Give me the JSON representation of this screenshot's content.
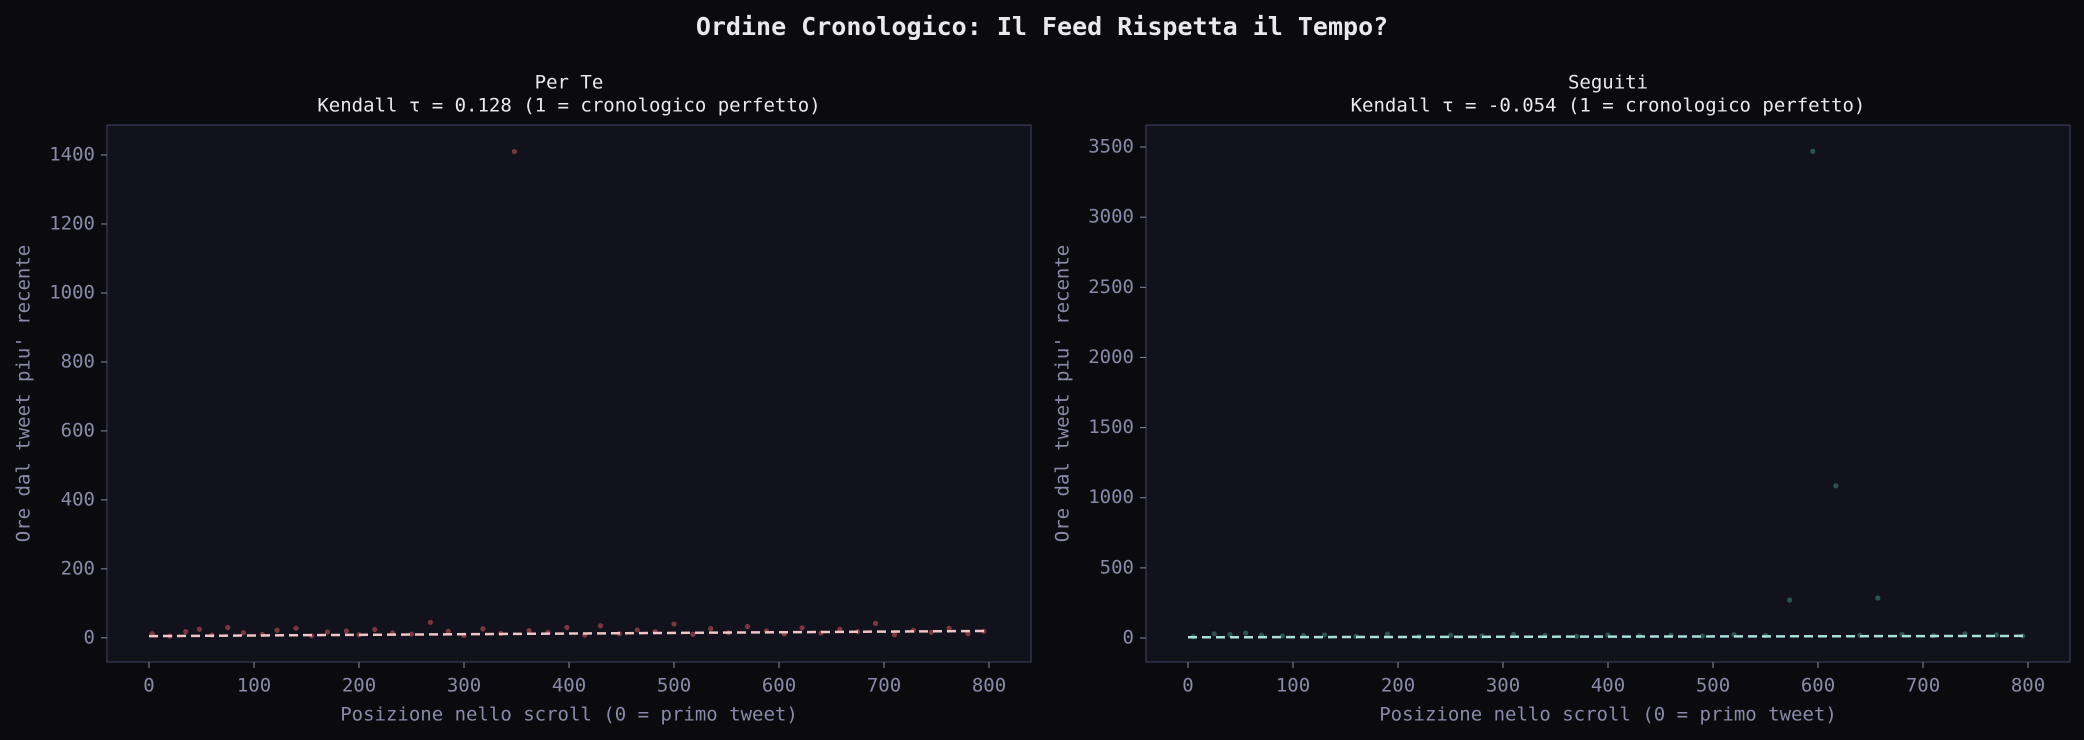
{
  "title": "Ordine Cronologico: Il Feed Rispetta il Tempo?",
  "chart_data": [
    {
      "type": "scatter",
      "title": "Per Te",
      "subtitle": "Kendall τ = 0.128 (1 = cronologico perfetto)",
      "x_label": "Posizione nello scroll (0 = primo tweet)",
      "y_label": "Ore dal tweet piu' recente",
      "xlim": [
        -40,
        840
      ],
      "ylim": [
        -70,
        1487
      ],
      "xticks": [
        0,
        100,
        200,
        300,
        400,
        500,
        600,
        700,
        800
      ],
      "yticks": [
        0,
        200,
        400,
        600,
        800,
        1000,
        1200,
        1400
      ],
      "series": [
        {
          "color": "#c0505a",
          "marker": "o",
          "x": [
            3,
            20,
            35,
            48,
            60,
            75,
            90,
            108,
            122,
            140,
            155,
            170,
            188,
            200,
            215,
            232,
            250,
            268,
            285,
            300,
            318,
            335,
            348,
            362,
            380,
            398,
            415,
            430,
            448,
            465,
            482,
            500,
            518,
            535,
            552,
            570,
            588,
            605,
            622,
            640,
            658,
            675,
            692,
            710,
            728,
            745,
            762,
            780,
            795
          ],
          "values": [
            12,
            5,
            18,
            25,
            8,
            30,
            15,
            10,
            22,
            28,
            6,
            17,
            20,
            9,
            24,
            14,
            11,
            45,
            19,
            7,
            26,
            13,
            1410,
            21,
            16,
            30,
            8,
            35,
            12,
            23,
            18,
            40,
            10,
            27,
            15,
            33,
            20,
            11,
            29,
            14,
            25,
            18,
            42,
            9,
            22,
            16,
            28,
            12,
            19
          ]
        },
        {
          "color": "#f0c4c8",
          "linestyle": "dashed",
          "x": [
            0,
            800
          ],
          "values": [
            5,
            20
          ]
        }
      ]
    },
    {
      "type": "scatter",
      "title": "Seguiti",
      "subtitle": "Kendall τ = -0.054 (1 = cronologico perfetto)",
      "x_label": "Posizione nello scroll (0 = primo tweet)",
      "y_label": "Ore dal tweet piu' recente",
      "xlim": [
        -40,
        840
      ],
      "ylim": [
        -171,
        3657
      ],
      "xticks": [
        0,
        100,
        200,
        300,
        400,
        500,
        600,
        700,
        800
      ],
      "yticks": [
        0,
        500,
        1000,
        1500,
        2000,
        2500,
        3000,
        3500
      ],
      "series": [
        {
          "color": "#3f7f6e",
          "marker": "o",
          "x": [
            5,
            25,
            40,
            55,
            70,
            90,
            110,
            130,
            160,
            190,
            220,
            250,
            280,
            310,
            340,
            370,
            400,
            430,
            460,
            490,
            520,
            550,
            573,
            595,
            617,
            640,
            657,
            680,
            710,
            740,
            770,
            795
          ],
          "values": [
            10,
            30,
            25,
            35,
            20,
            15,
            18,
            22,
            12,
            28,
            10,
            20,
            15,
            25,
            18,
            12,
            22,
            16,
            20,
            14,
            24,
            18,
            270,
            3470,
            1085,
            20,
            285,
            25,
            18,
            30,
            22,
            15
          ]
        },
        {
          "color": "#a8e0d8",
          "linestyle": "dashed",
          "x": [
            0,
            800
          ],
          "values": [
            5,
            15
          ]
        }
      ]
    }
  ]
}
